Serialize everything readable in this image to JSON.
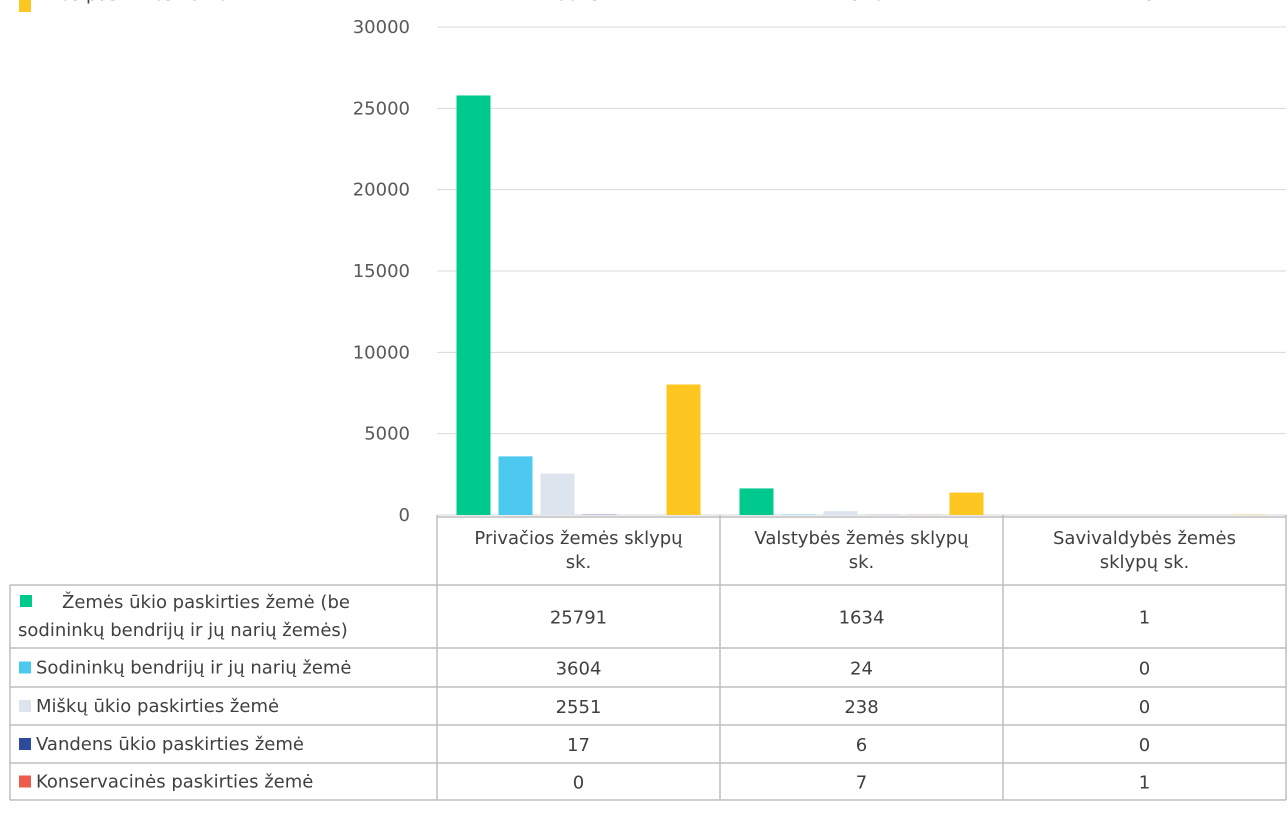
{
  "chart_data": {
    "type": "bar",
    "categories": [
      "Privačios žemės sklypų sk.",
      "Valstybės žemės sklypų sk.",
      "Savivaldybės žemės sklypų sk."
    ],
    "category_lines": [
      [
        "Privačios žemės sklypų",
        "sk."
      ],
      [
        "Valstybės žemės sklypų",
        "sk."
      ],
      [
        "Savivaldybės žemės",
        "sklypų sk."
      ]
    ],
    "series": [
      {
        "name": "Žemės ūkio paskirties žemė (be sodininkų bendrijų ir jų narių žemės)",
        "name_lines": [
          "Žemės ūkio paskirties žemė (be",
          "sodininkų bendrijų ir jų narių žemės)"
        ],
        "color": "#00c98d",
        "values": [
          25791,
          1634,
          1
        ]
      },
      {
        "name": "Sodininkų bendrijų ir jų narių žemė",
        "name_lines": [
          "Sodininkų bendrijų ir jų narių žemė"
        ],
        "color": "#4dc9f0",
        "values": [
          3604,
          24,
          0
        ]
      },
      {
        "name": "Miškų ūkio paskirties žemė",
        "name_lines": [
          "Miškų ūkio paskirties žemė"
        ],
        "color": "#dde4ee",
        "values": [
          2551,
          238,
          0
        ]
      },
      {
        "name": "Vandens ūkio paskirties žemė",
        "name_lines": [
          "Vandens ūkio paskirties žemė"
        ],
        "color": "#2e4a9c",
        "values": [
          17,
          6,
          0
        ]
      },
      {
        "name": "Konservacinės paskirties žemė",
        "name_lines": [
          "Konservacinės paskirties žemė"
        ],
        "color": "#ef5b4b",
        "values": [
          0,
          7,
          1
        ]
      },
      {
        "name": "Kitos paskirties žemė",
        "name_lines": [
          "Kitos paskirties žemė"
        ],
        "color": "#fdc620",
        "values": [
          8023,
          1378,
          15
        ]
      }
    ],
    "ylim": [
      0,
      30000
    ],
    "yticks": [
      0,
      5000,
      10000,
      15000,
      20000,
      25000,
      30000
    ],
    "grid": true,
    "legend": "data-table"
  }
}
